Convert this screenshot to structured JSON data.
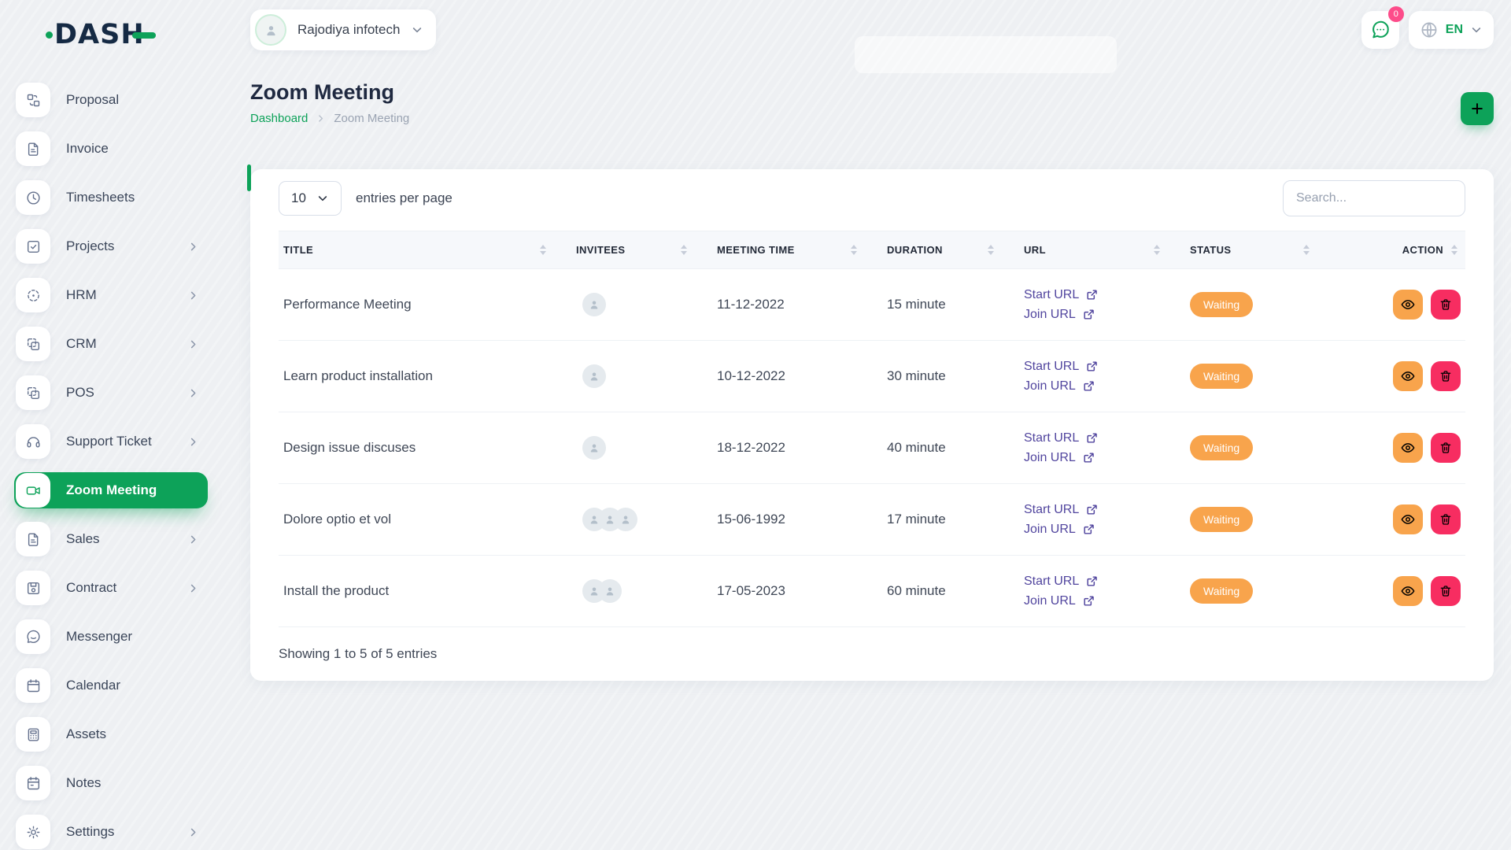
{
  "brand": {
    "name": "DASH"
  },
  "topbar": {
    "company_name": "Rajodiya infotech",
    "chat_badge": "0",
    "language": "EN"
  },
  "page": {
    "title": "Zoom Meeting",
    "breadcrumb_home": "Dashboard",
    "breadcrumb_current": "Zoom Meeting"
  },
  "sidebar": {
    "items": [
      {
        "label": "Proposal",
        "icon": "proposal-icon",
        "expandable": false,
        "active": false
      },
      {
        "label": "Invoice",
        "icon": "file-text-icon",
        "expandable": false,
        "active": false
      },
      {
        "label": "Timesheets",
        "icon": "clock-icon",
        "expandable": false,
        "active": false
      },
      {
        "label": "Projects",
        "icon": "check-square-icon",
        "expandable": true,
        "active": false
      },
      {
        "label": "HRM",
        "icon": "crosshair-icon",
        "expandable": true,
        "active": false
      },
      {
        "label": "CRM",
        "icon": "box-icon",
        "expandable": true,
        "active": false
      },
      {
        "label": "POS",
        "icon": "box-icon",
        "expandable": true,
        "active": false
      },
      {
        "label": "Support Ticket",
        "icon": "headphones-icon",
        "expandable": true,
        "active": false
      },
      {
        "label": "Zoom Meeting",
        "icon": "video-icon",
        "expandable": false,
        "active": true
      },
      {
        "label": "Sales",
        "icon": "file-text-icon",
        "expandable": true,
        "active": false
      },
      {
        "label": "Contract",
        "icon": "save-icon",
        "expandable": true,
        "active": false
      },
      {
        "label": "Messenger",
        "icon": "chat-bubble-icon",
        "expandable": false,
        "active": false
      },
      {
        "label": "Calendar",
        "icon": "calendar-icon",
        "expandable": false,
        "active": false
      },
      {
        "label": "Assets",
        "icon": "calculator-icon",
        "expandable": false,
        "active": false
      },
      {
        "label": "Notes",
        "icon": "notes-icon",
        "expandable": false,
        "active": false
      },
      {
        "label": "Settings",
        "icon": "gear-icon",
        "expandable": true,
        "active": false
      }
    ]
  },
  "table_card": {
    "entries_value": "10",
    "entries_label": "entries per page",
    "search_placeholder": "Search...",
    "columns": [
      "TITLE",
      "INVITEES",
      "MEETING TIME",
      "DURATION",
      "URL",
      "STATUS",
      "ACTION"
    ],
    "rows": [
      {
        "title": "Performance Meeting",
        "invitees": 1,
        "meeting_time": "11-12-2022",
        "duration": "15 minute",
        "start_link": "Start URL",
        "join_link": "Join URL",
        "status": "Waiting"
      },
      {
        "title": "Learn product installation",
        "invitees": 1,
        "meeting_time": "10-12-2022",
        "duration": "30 minute",
        "start_link": "Start URL",
        "join_link": "Join URL",
        "status": "Waiting"
      },
      {
        "title": "Design issue discuses",
        "invitees": 1,
        "meeting_time": "18-12-2022",
        "duration": "40 minute",
        "start_link": "Start URL",
        "join_link": "Join URL",
        "status": "Waiting"
      },
      {
        "title": "Dolore optio et vol",
        "invitees": 3,
        "meeting_time": "15-06-1992",
        "duration": "17 minute",
        "start_link": "Start URL",
        "join_link": "Join URL",
        "status": "Waiting"
      },
      {
        "title": "Install the product",
        "invitees": 2,
        "meeting_time": "17-05-2023",
        "duration": "60 minute",
        "start_link": "Start URL",
        "join_link": "Join URL",
        "status": "Waiting"
      }
    ],
    "footer": "Showing 1 to 5 of 5 entries"
  },
  "colors": {
    "green": "#0da259",
    "purple": "#51459e",
    "orange": "#f8a44c",
    "pink": "#f72d61",
    "badge_pink": "#fd4c8a"
  }
}
